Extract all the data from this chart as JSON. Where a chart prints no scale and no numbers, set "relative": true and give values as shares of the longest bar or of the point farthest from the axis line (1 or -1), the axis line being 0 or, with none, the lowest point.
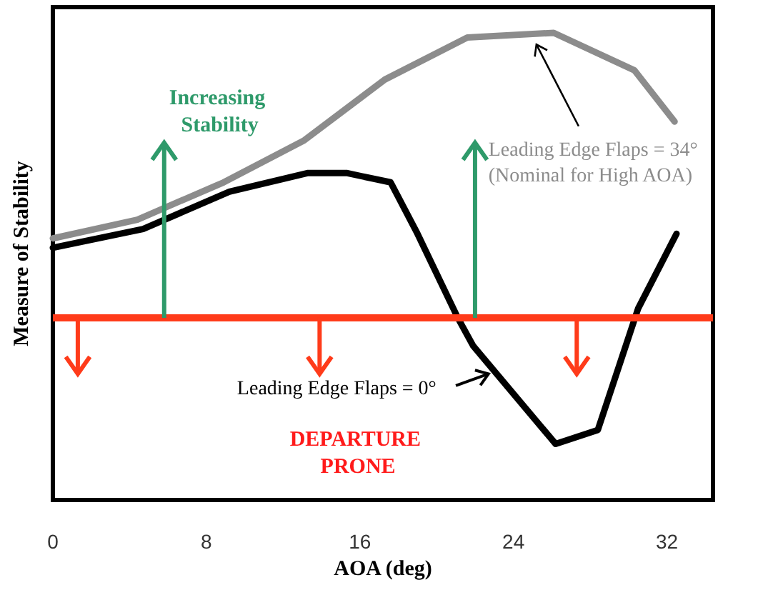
{
  "chart_data": {
    "type": "line",
    "relative": true,
    "xlabel": "AOA (deg)",
    "ylabel": "Measure of Stability",
    "x": [
      0,
      4.4,
      8.9,
      13.1,
      17.3,
      21.6,
      26.1,
      30.3,
      32.4
    ],
    "series": [
      {
        "name": "Leading Edge Flaps = 34° (Nominal for High AOA)",
        "color": "#8c8c8c",
        "values": [
          0.56,
          0.6,
          0.68,
          0.77,
          0.9,
          0.99,
          1.0,
          0.92,
          0.81
        ]
      },
      {
        "name": "Leading Edge Flaps = 0°",
        "color": "#000000",
        "x": [
          0,
          4.7,
          9.2,
          13.3,
          15.3,
          17.6,
          19.0,
          21.1,
          21.9,
          26.2,
          28.4,
          30.5,
          32.5
        ],
        "values": [
          0.54,
          0.58,
          0.66,
          0.7,
          0.7,
          0.68,
          0.57,
          0.39,
          0.33,
          0.12,
          0.15,
          0.41,
          0.57
        ]
      }
    ],
    "xlim": [
      0,
      34.4
    ],
    "xticks": [
      0,
      8,
      16,
      24,
      32
    ],
    "ref_lines": [
      {
        "axis": "y",
        "value": 0.39,
        "color": "#ff3b1a"
      }
    ],
    "annotations": [
      "Increasing Stability",
      "DEPARTURE PRONE"
    ],
    "grid": false,
    "legend": false,
    "marker": "none",
    "line_style": "solid"
  }
}
